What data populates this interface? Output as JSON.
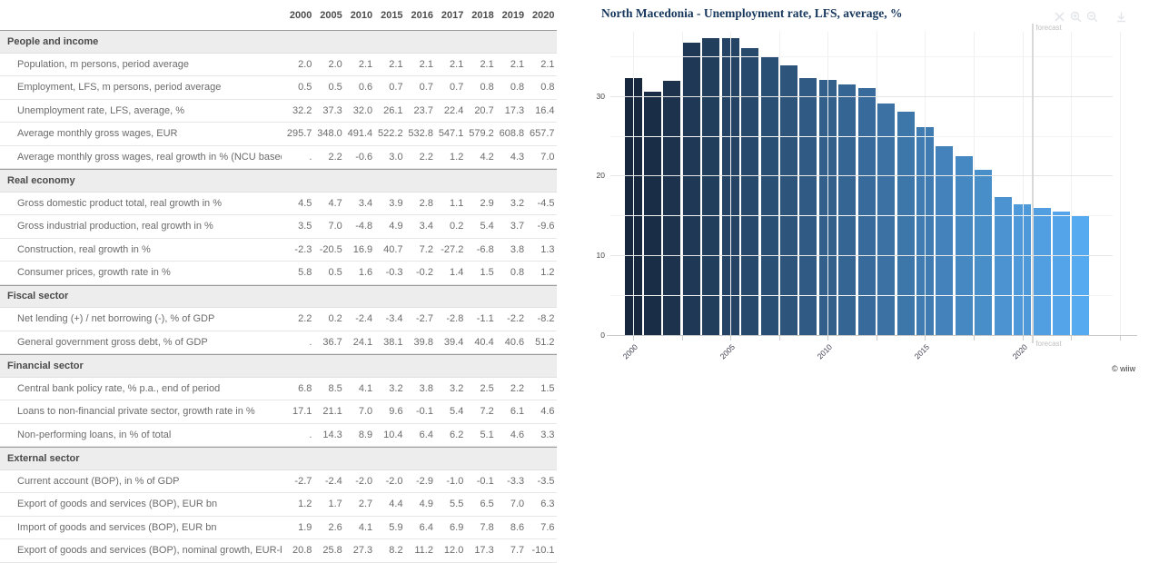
{
  "table": {
    "years": [
      "2000",
      "2005",
      "2010",
      "2015",
      "2016",
      "2017",
      "2018",
      "2019",
      "2020"
    ],
    "sections": [
      {
        "label": "People and income",
        "rows": [
          {
            "label": "Population, m persons, period average",
            "values": [
              "2.0",
              "2.0",
              "2.1",
              "2.1",
              "2.1",
              "2.1",
              "2.1",
              "2.1",
              "2.1"
            ]
          },
          {
            "label": "Employment, LFS, m persons, period average",
            "values": [
              "0.5",
              "0.5",
              "0.6",
              "0.7",
              "0.7",
              "0.7",
              "0.8",
              "0.8",
              "0.8"
            ]
          },
          {
            "label": "Unemployment rate, LFS, average, %",
            "values": [
              "32.2",
              "37.3",
              "32.0",
              "26.1",
              "23.7",
              "22.4",
              "20.7",
              "17.3",
              "16.4"
            ]
          },
          {
            "label": "Average monthly gross wages, EUR",
            "values": [
              "295.7",
              "348.0",
              "491.4",
              "522.2",
              "532.8",
              "547.1",
              "579.2",
              "608.8",
              "657.7"
            ]
          },
          {
            "label": "Average monthly gross wages, real growth in % (NCU based)",
            "values": [
              ".",
              "2.2",
              "-0.6",
              "3.0",
              "2.2",
              "1.2",
              "4.2",
              "4.3",
              "7.0"
            ]
          }
        ]
      },
      {
        "label": "Real economy",
        "rows": [
          {
            "label": "Gross domestic product total, real growth in %",
            "values": [
              "4.5",
              "4.7",
              "3.4",
              "3.9",
              "2.8",
              "1.1",
              "2.9",
              "3.2",
              "-4.5"
            ]
          },
          {
            "label": "Gross industrial production, real growth in %",
            "values": [
              "3.5",
              "7.0",
              "-4.8",
              "4.9",
              "3.4",
              "0.2",
              "5.4",
              "3.7",
              "-9.6"
            ]
          },
          {
            "label": "Construction, real growth in %",
            "values": [
              "-2.3",
              "-20.5",
              "16.9",
              "40.7",
              "7.2",
              "-27.2",
              "-6.8",
              "3.8",
              "1.3"
            ]
          },
          {
            "label": "Consumer prices, growth rate in %",
            "values": [
              "5.8",
              "0.5",
              "1.6",
              "-0.3",
              "-0.2",
              "1.4",
              "1.5",
              "0.8",
              "1.2"
            ]
          }
        ]
      },
      {
        "label": "Fiscal sector",
        "rows": [
          {
            "label": "Net lending (+) / net borrowing (-), % of GDP",
            "values": [
              "2.2",
              "0.2",
              "-2.4",
              "-3.4",
              "-2.7",
              "-2.8",
              "-1.1",
              "-2.2",
              "-8.2"
            ]
          },
          {
            "label": "General government gross debt, % of GDP",
            "values": [
              ".",
              "36.7",
              "24.1",
              "38.1",
              "39.8",
              "39.4",
              "40.4",
              "40.6",
              "51.2"
            ]
          }
        ]
      },
      {
        "label": "Financial sector",
        "rows": [
          {
            "label": "Central bank policy rate, % p.a., end of period",
            "values": [
              "6.8",
              "8.5",
              "4.1",
              "3.2",
              "3.8",
              "3.2",
              "2.5",
              "2.2",
              "1.5"
            ]
          },
          {
            "label": "Loans to non-financial private sector, growth rate in %",
            "values": [
              "17.1",
              "21.1",
              "7.0",
              "9.6",
              "-0.1",
              "5.4",
              "7.2",
              "6.1",
              "4.6"
            ]
          },
          {
            "label": "Non-performing loans, in % of total",
            "values": [
              ".",
              "14.3",
              "8.9",
              "10.4",
              "6.4",
              "6.2",
              "5.1",
              "4.6",
              "3.3"
            ]
          }
        ]
      },
      {
        "label": "External sector",
        "rows": [
          {
            "label": "Current account (BOP), in % of GDP",
            "values": [
              "-2.7",
              "-2.4",
              "-2.0",
              "-2.0",
              "-2.9",
              "-1.0",
              "-0.1",
              "-3.3",
              "-3.5"
            ]
          },
          {
            "label": "Export of goods and services (BOP), EUR bn",
            "values": [
              "1.2",
              "1.7",
              "2.7",
              "4.4",
              "4.9",
              "5.5",
              "6.5",
              "7.0",
              "6.3"
            ]
          },
          {
            "label": "Import of goods and services (BOP), EUR bn",
            "values": [
              "1.9",
              "2.6",
              "4.1",
              "5.9",
              "6.4",
              "6.9",
              "7.8",
              "8.6",
              "7.6"
            ]
          },
          {
            "label": "Export of goods and services (BOP), nominal growth, EUR-based",
            "values": [
              "20.8",
              "25.8",
              "27.3",
              "8.2",
              "11.2",
              "12.0",
              "17.3",
              "7.7",
              "-10.1"
            ]
          }
        ]
      }
    ]
  },
  "chart": {
    "title": "North Macedonia - Unemployment rate, LFS, average, %",
    "forecast_label": "forecast",
    "watermark": "© wiiw",
    "toolbar_icons": [
      "close-icon",
      "zoom-in-icon",
      "zoom-out-icon",
      "download-icon"
    ]
  },
  "chart_data": {
    "type": "bar",
    "title": "North Macedonia - Unemployment rate, LFS, average, %",
    "x": [
      2000,
      2001,
      2002,
      2003,
      2004,
      2005,
      2006,
      2007,
      2008,
      2009,
      2010,
      2011,
      2012,
      2013,
      2014,
      2015,
      2016,
      2017,
      2018,
      2019,
      2020,
      2021,
      2022,
      2023
    ],
    "values": [
      32.2,
      30.5,
      31.9,
      36.7,
      37.2,
      37.3,
      36.0,
      34.9,
      33.8,
      32.2,
      32.0,
      31.4,
      31.0,
      29.0,
      28.0,
      26.1,
      23.7,
      22.4,
      20.7,
      17.3,
      16.4,
      16.0,
      15.5,
      15.0
    ],
    "forecast_from": 2021,
    "ylim": [
      0,
      38
    ],
    "ytick_labels": [
      "30",
      "20",
      "10",
      "0"
    ],
    "yticks": [
      30,
      20,
      10,
      0
    ],
    "grid_step_y": 5,
    "xticks": [
      2000,
      2005,
      2010,
      2015,
      2020
    ],
    "grid_step_x_years": 2.5,
    "legend": "none",
    "bar_color_start": "#17273e",
    "bar_color_end": "#56aaf0",
    "title_color": "#17375d"
  }
}
